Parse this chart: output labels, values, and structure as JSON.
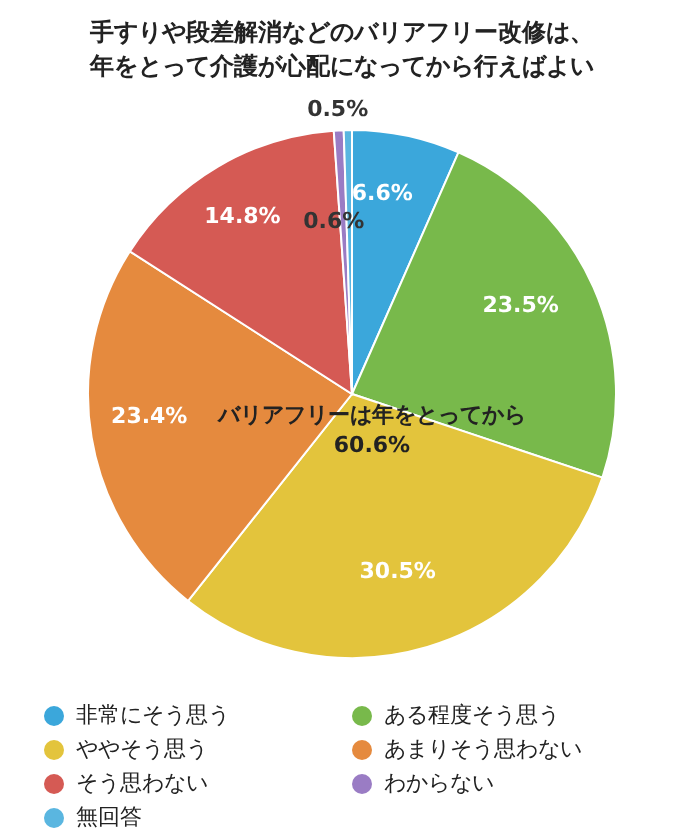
{
  "chart_data": {
    "type": "pie",
    "title": "手すりや段差解消などのバリアフリー改修は、年をとって介護が心配になってから行えばよい",
    "categories": [
      "非常にそう思う",
      "ある程度そう思う",
      "ややそう思う",
      "あまりそう思わない",
      "そう思わない",
      "わからない",
      "無回答"
    ],
    "values": [
      6.6,
      23.5,
      30.5,
      23.4,
      14.8,
      0.6,
      0.5
    ],
    "colors": [
      "#3ba7db",
      "#78b94b",
      "#e3c43c",
      "#e58a3e",
      "#d55a54",
      "#9a7cc4",
      "#5ab6e0"
    ],
    "value_labels": [
      "6.6%",
      "23.5%",
      "30.5%",
      "23.4%",
      "14.8%",
      "0.6%",
      "0.5%"
    ],
    "annotations": [
      "バリアフリーは年をとってから\n60.6%"
    ],
    "legend": "bottom"
  }
}
